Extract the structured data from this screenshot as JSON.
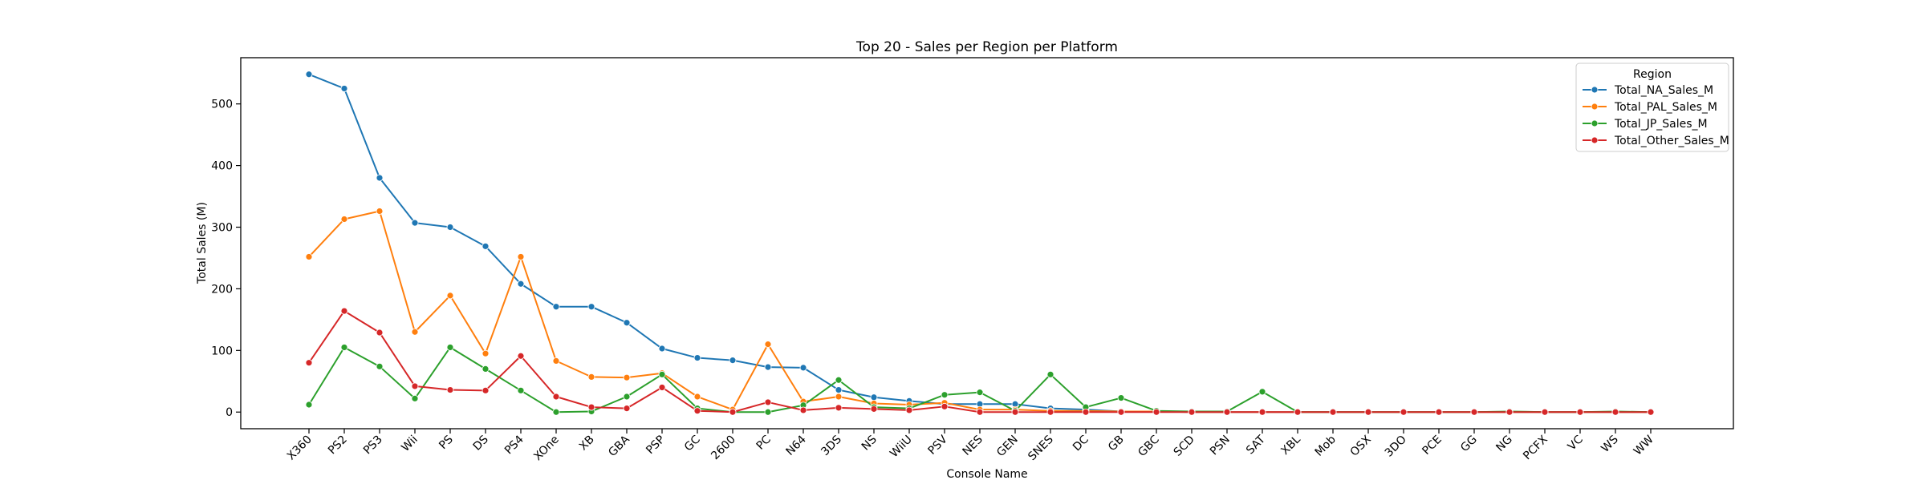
{
  "chart_data": {
    "type": "line",
    "title": "Top 20 - Sales per Region per Platform",
    "xlabel": "Console Name",
    "ylabel": "Total Sales (M)",
    "ylim": [
      -27,
      575
    ],
    "yticks": [
      0,
      100,
      200,
      300,
      400,
      500
    ],
    "grid": false,
    "legend_position": "top-right",
    "legend_title": "Region",
    "categories": [
      "X360",
      "PS2",
      "PS3",
      "Wii",
      "PS",
      "DS",
      "PS4",
      "XOne",
      "XB",
      "GBA",
      "PSP",
      "GC",
      "2600",
      "PC",
      "N64",
      "3DS",
      "NS",
      "WiiU",
      "PSV",
      "NES",
      "GEN",
      "SNES",
      "DC",
      "GB",
      "GBC",
      "SCD",
      "PSN",
      "SAT",
      "XBL",
      "Mob",
      "OSX",
      "3DO",
      "PCE",
      "GG",
      "NG",
      "PCFX",
      "VC",
      "WS",
      "WW"
    ],
    "series": [
      {
        "name": "Total_NA_Sales_M",
        "color": "#1f77b4",
        "values": [
          548,
          525,
          380,
          307,
          300,
          269,
          208,
          171,
          171,
          145,
          103,
          88,
          84,
          73,
          72,
          36,
          24,
          18,
          13,
          13,
          13,
          6,
          4,
          1,
          1,
          0,
          0,
          0,
          0,
          0,
          0,
          0,
          0,
          0,
          0,
          0,
          0,
          0,
          0
        ]
      },
      {
        "name": "Total_PAL_Sales_M",
        "color": "#ff7f0e",
        "values": [
          252,
          313,
          326,
          130,
          189,
          95,
          252,
          83,
          57,
          56,
          63,
          25,
          4,
          110,
          17,
          25,
          14,
          12,
          15,
          4,
          4,
          2,
          2,
          1,
          1,
          0,
          0,
          0,
          0,
          0,
          0,
          0,
          0,
          0,
          0,
          0,
          0,
          0,
          0
        ]
      },
      {
        "name": "Total_JP_Sales_M",
        "color": "#2ca02c",
        "values": [
          12,
          105,
          74,
          22,
          105,
          70,
          35,
          0,
          1,
          25,
          61,
          6,
          0,
          0,
          11,
          52,
          8,
          6,
          28,
          32,
          2,
          61,
          8,
          23,
          2,
          1,
          1,
          33,
          0,
          0,
          0,
          0,
          0,
          0,
          1,
          0,
          0,
          1,
          0
        ]
      },
      {
        "name": "Total_Other_Sales_M",
        "color": "#d62728",
        "values": [
          80,
          164,
          129,
          42,
          36,
          35,
          91,
          25,
          8,
          6,
          40,
          2,
          0,
          16,
          3,
          7,
          5,
          3,
          9,
          0,
          0,
          0,
          0,
          0,
          0,
          0,
          0,
          0,
          0,
          0,
          0,
          0,
          0,
          0,
          0,
          0,
          0,
          0,
          0
        ]
      }
    ]
  }
}
